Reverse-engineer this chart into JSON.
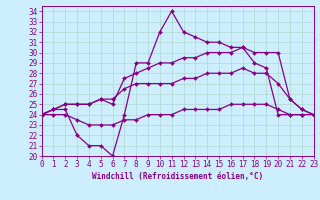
{
  "xlabel": "Windchill (Refroidissement éolien,°C)",
  "background_color": "#cceeff",
  "grid_color": "#b0d8cc",
  "line_color": "#880088",
  "ylim": [
    20,
    34.5
  ],
  "xlim": [
    0,
    23
  ],
  "series": [
    [
      24,
      24.5,
      24.5,
      22,
      21,
      21,
      20,
      24,
      29,
      29,
      32,
      34,
      32,
      31.5,
      31,
      31,
      30.5,
      30.5,
      29,
      28.5,
      24,
      24,
      24
    ],
    [
      24,
      24.5,
      25,
      25,
      25,
      25.5,
      25,
      27.5,
      28,
      28.5,
      29,
      29,
      29.5,
      29.5,
      30,
      30,
      30,
      30.5,
      30,
      30,
      30,
      25.5,
      24.5,
      24
    ],
    [
      24,
      24.5,
      25,
      25,
      25,
      25.5,
      25.5,
      26.5,
      27,
      27,
      27,
      27,
      27.5,
      27.5,
      28,
      28,
      28,
      28.5,
      28,
      28,
      27,
      25.5,
      24.5,
      24
    ],
    [
      24,
      24,
      24,
      23.5,
      23,
      23,
      23,
      23.5,
      23.5,
      24,
      24,
      24,
      24.5,
      24.5,
      24.5,
      24.5,
      25,
      25,
      25,
      25,
      24.5,
      24,
      24,
      24
    ]
  ],
  "yticks": [
    20,
    21,
    22,
    23,
    24,
    25,
    26,
    27,
    28,
    29,
    30,
    31,
    32,
    33,
    34
  ],
  "xticks": [
    0,
    1,
    2,
    3,
    4,
    5,
    6,
    7,
    8,
    9,
    10,
    11,
    12,
    13,
    14,
    15,
    16,
    17,
    18,
    19,
    20,
    21,
    22,
    23
  ],
  "marker": "D",
  "markersize": 2.0,
  "linewidth": 0.9,
  "tick_fontsize": 5.5,
  "xlabel_fontsize": 5.5
}
